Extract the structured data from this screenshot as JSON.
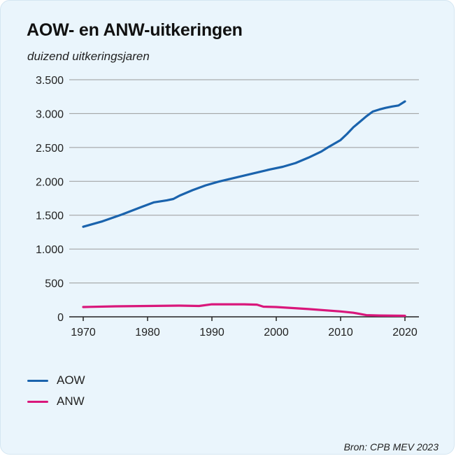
{
  "title": "AOW- en ANW-uitkeringen",
  "subtitle": "duizend uitkeringsjaren",
  "source": "Bron: CPB MEV 2023",
  "colors": {
    "AOW": "#1a63ad",
    "ANW": "#d9177b",
    "grid": "#9a9a9a",
    "axis": "#222222",
    "background": "#eaf5fc"
  },
  "legend": [
    {
      "label": "AOW",
      "color": "#1a63ad"
    },
    {
      "label": "ANW",
      "color": "#d9177b"
    }
  ],
  "chart_data": {
    "type": "line",
    "title": "AOW- en ANW-uitkeringen",
    "ylabel": "duizend uitkeringsjaren",
    "xlabel": "",
    "xlim": [
      1970,
      2020
    ],
    "ylim": [
      0,
      3500
    ],
    "xticks": [
      1970,
      1980,
      1990,
      2000,
      2010,
      2020
    ],
    "xtick_labels": [
      "1970",
      "1980",
      "1990",
      "2000",
      "2010",
      "2020"
    ],
    "yticks": [
      0,
      500,
      1000,
      1500,
      2000,
      2500,
      3000,
      3500
    ],
    "ytick_labels": [
      "0",
      "500",
      "1.000",
      "1.500",
      "2.000",
      "2.500",
      "3.000",
      "3.500"
    ],
    "grid": "horizontal",
    "legend_position": "bottom-left",
    "series": [
      {
        "name": "AOW",
        "x": [
          1970,
          1973,
          1976,
          1979,
          1981,
          1983,
          1984,
          1985,
          1987,
          1989,
          1991,
          1993,
          1995,
          1997,
          1999,
          2001,
          2003,
          2005,
          2007,
          2008,
          2010,
          2011,
          2012,
          2013,
          2014,
          2015,
          2016,
          2017,
          2018,
          2019,
          2020
        ],
        "y": [
          1330,
          1410,
          1510,
          1620,
          1690,
          1720,
          1740,
          1790,
          1870,
          1940,
          1995,
          2040,
          2085,
          2130,
          2175,
          2215,
          2270,
          2350,
          2440,
          2500,
          2610,
          2700,
          2800,
          2880,
          2960,
          3030,
          3060,
          3085,
          3105,
          3120,
          3180
        ]
      },
      {
        "name": "ANW",
        "x": [
          1970,
          1975,
          1980,
          1985,
          1988,
          1990,
          1995,
          1997,
          1998,
          2000,
          2005,
          2010,
          2012,
          2014,
          2016,
          2020
        ],
        "y": [
          145,
          155,
          160,
          165,
          160,
          185,
          185,
          180,
          150,
          145,
          115,
          80,
          60,
          25,
          20,
          15
        ]
      }
    ]
  }
}
